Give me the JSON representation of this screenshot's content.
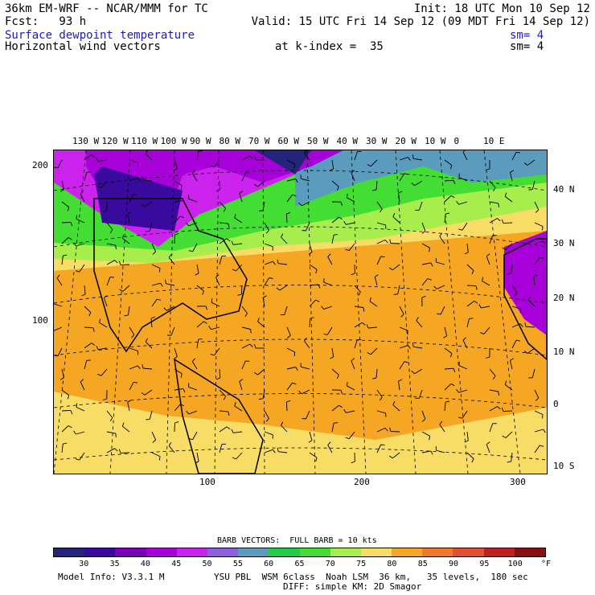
{
  "header": {
    "title": "36km EM-WRF -- NCAR/MMM for TC",
    "init": "Init: 18 UTC Mon 10 Sep 12",
    "fcst": "Fcst:   93 h",
    "valid": "Valid: 15 UTC Fri 14 Sep 12 (09 MDT Fri 14 Sep 12)",
    "field1": "Surface dewpoint temperature",
    "field1_sm": "sm= 4",
    "field2": "Horizontal wind vectors",
    "kindex": "at k-index =  35",
    "field2_sm": "sm= 4"
  },
  "map": {
    "top_lon_labels": [
      "130 W",
      "120 W",
      "110 W",
      "100 W",
      "90 W",
      "80 W",
      "70 W",
      "60 W",
      "50 W",
      "40 W",
      "30 W",
      "20 W",
      "10 W",
      "0",
      "10 E"
    ],
    "right_lat_labels": [
      "40 N",
      "30 N",
      "20 N",
      "10 N",
      "0",
      "10 S"
    ],
    "left_grid_labels": [
      "200",
      "100"
    ],
    "bottom_grid_labels": [
      "100",
      "200",
      "300"
    ]
  },
  "legend": {
    "barb_note": "BARB VECTORS:  FULL BARB = 10 kts",
    "labels": [
      "30",
      "35",
      "40",
      "45",
      "50",
      "55",
      "60",
      "65",
      "70",
      "75",
      "80",
      "85",
      "90",
      "95",
      "100"
    ],
    "unit": "°F",
    "colors": [
      "#24247a",
      "#3a0a9e",
      "#7a00b8",
      "#a800d8",
      "#cc22ee",
      "#8f5fdc",
      "#5b9bbd",
      "#22cc44",
      "#44dd33",
      "#a7ee4c",
      "#f7dc66",
      "#f5a623",
      "#f0782a",
      "#e05030",
      "#c02020",
      "#8b0f0f"
    ]
  },
  "footer": {
    "model": "Model Info: V3.3.1 M",
    "physics": "YSU PBL  WSM 6class  Noah LSM  36 km,   35 levels,  180 sec",
    "physics2": "DIFF: simple KM: 2D Smagor"
  }
}
